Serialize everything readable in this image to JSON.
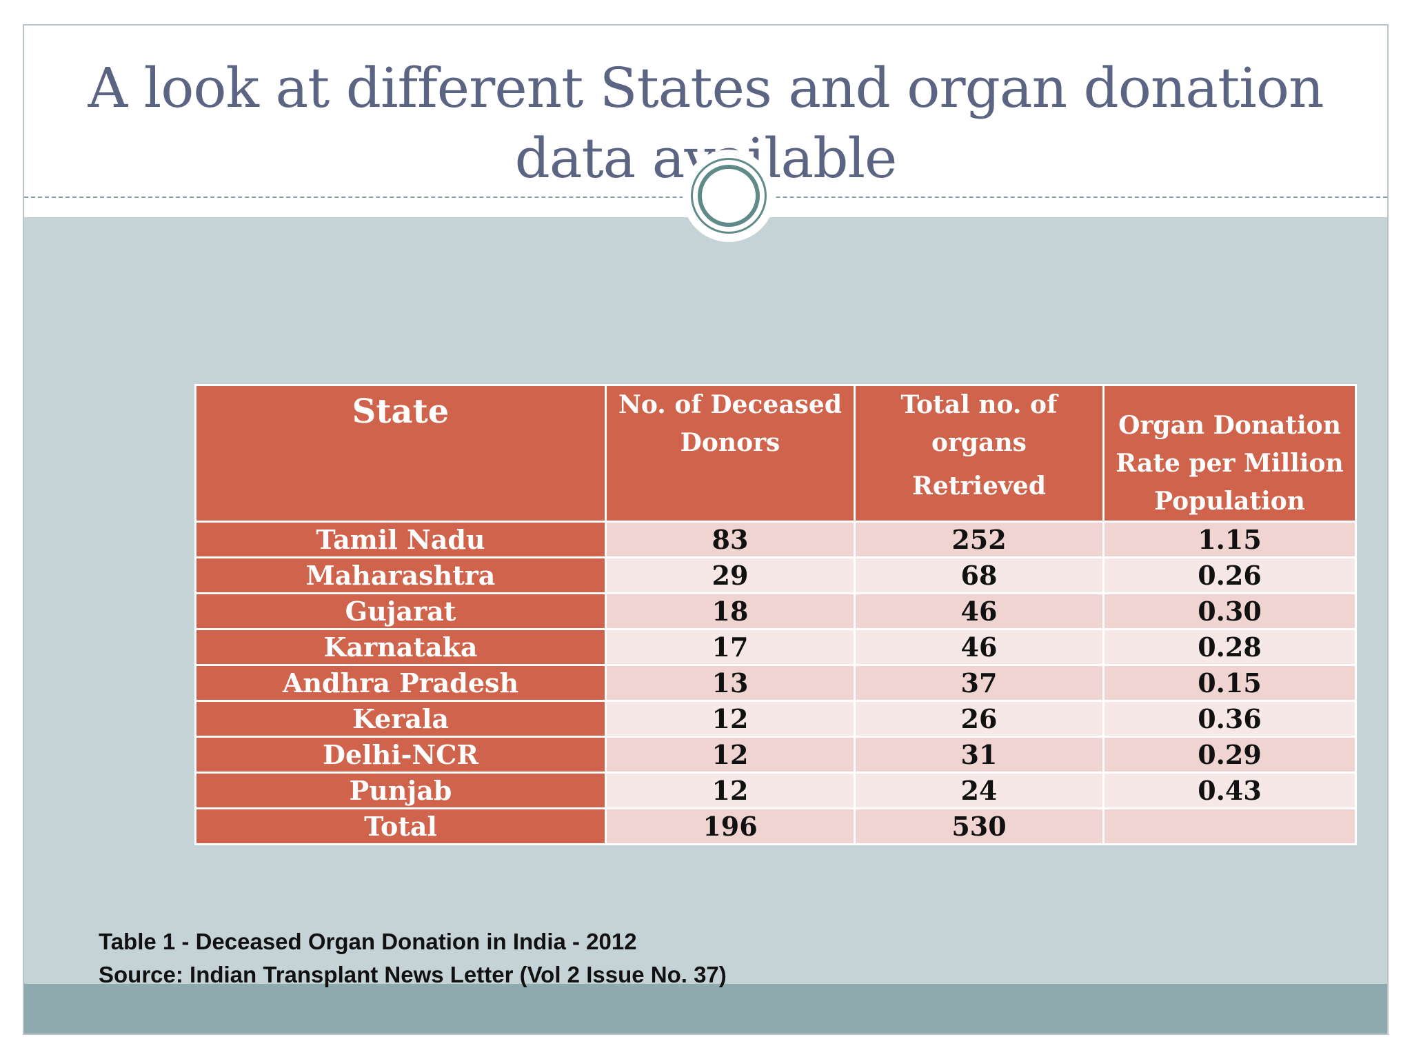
{
  "slide": {
    "title": "A look at different States and organ donation data available"
  },
  "table": {
    "headers": {
      "state": "State",
      "donors": "No. of Deceased Donors",
      "organs_line1": "Total no. of organs",
      "organs_line2": "Retrieved",
      "rate": "Organ Donation Rate per Million Population"
    },
    "rows": [
      {
        "state": "Tamil Nadu",
        "donors": "83",
        "organs": "252",
        "rate": "1.15"
      },
      {
        "state": "Maharashtra",
        "donors": "29",
        "organs": "68",
        "rate": "0.26"
      },
      {
        "state": "Gujarat",
        "donors": "18",
        "organs": "46",
        "rate": "0.30"
      },
      {
        "state": "Karnataka",
        "donors": "17",
        "organs": "46",
        "rate": "0.28"
      },
      {
        "state": "Andhra Pradesh",
        "donors": "13",
        "organs": "37",
        "rate": "0.15"
      },
      {
        "state": "Kerala",
        "donors": "12",
        "organs": "26",
        "rate": "0.36"
      },
      {
        "state": "Delhi-NCR",
        "donors": "12",
        "organs": "31",
        "rate": "0.29"
      },
      {
        "state": "Punjab",
        "donors": "12",
        "organs": "24",
        "rate": "0.43"
      }
    ],
    "total": {
      "state": "Total",
      "donors": "196",
      "organs": "530",
      "rate": ""
    }
  },
  "caption": {
    "line1": "Table 1 - Deceased Organ Donation in India - 2012",
    "line2": "Source: Indian Transplant News Letter (Vol 2 Issue No. 37)"
  },
  "colors": {
    "title_text": "#5c6483",
    "header_bg": "#d0634b",
    "body_bg": "#c5d2d6",
    "footer_bg": "#8faaae",
    "cell_light": "#f6e8e7",
    "cell_pink": "#efd4d2"
  }
}
